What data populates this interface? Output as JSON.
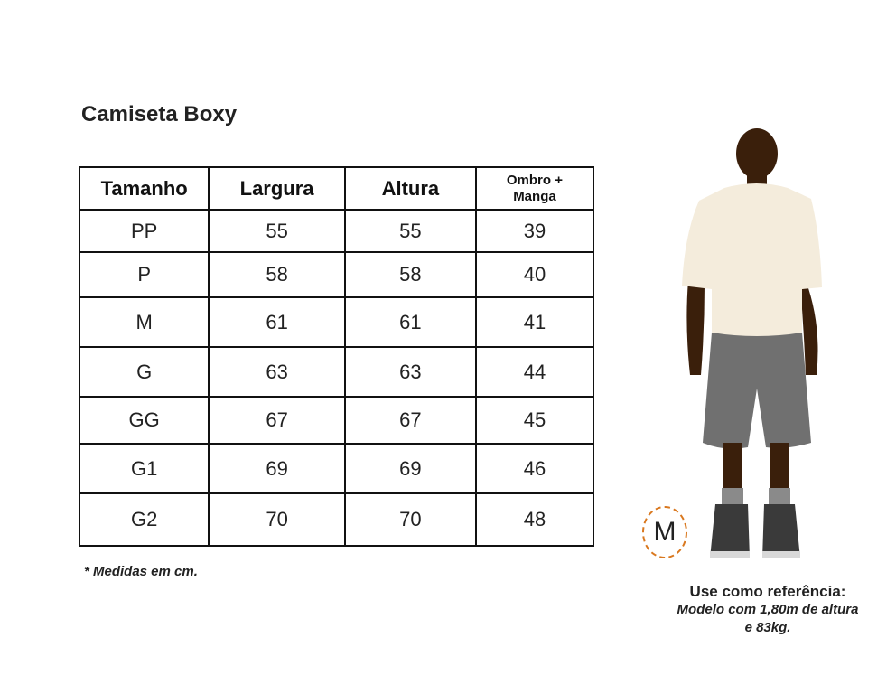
{
  "title": "Camiseta Boxy",
  "table": {
    "headers": [
      "Tamanho",
      "Largura",
      "Altura",
      "Ombro +\nManga"
    ],
    "rows": [
      [
        "PP",
        "55",
        "55",
        "39"
      ],
      [
        "P",
        "58",
        "58",
        "40"
      ],
      [
        "M",
        "61",
        "61",
        "41"
      ],
      [
        "G",
        "63",
        "63",
        "44"
      ],
      [
        "GG",
        "67",
        "67",
        "45"
      ],
      [
        "G1",
        "69",
        "69",
        "46"
      ],
      [
        "G2",
        "70",
        "70",
        "48"
      ]
    ]
  },
  "note": "* Medidas em cm.",
  "model": {
    "size_badge": "M",
    "reference_title": "Use como referência:",
    "reference_line1": "Modelo com 1,80m de altura",
    "reference_line2": "e 83kg."
  },
  "colors": {
    "skin": "#3a1f0b",
    "shirt": "#f4ecdc",
    "shorts": "#707070",
    "shoes": "#3a3a3a",
    "badge_border": "#d9781f"
  }
}
